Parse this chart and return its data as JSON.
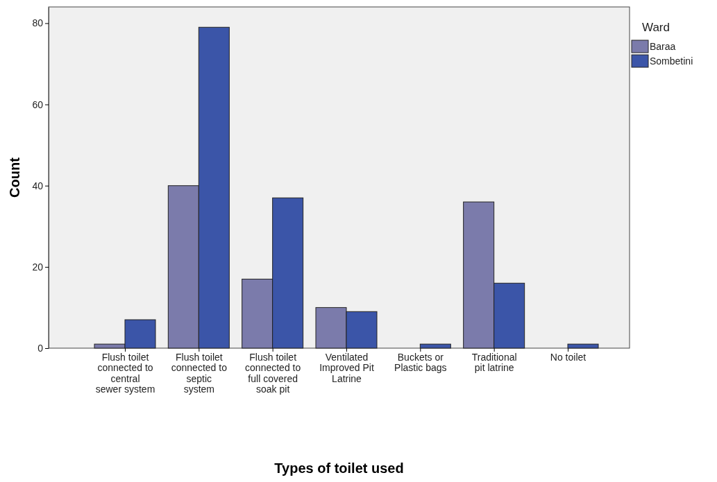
{
  "chart_data": {
    "type": "bar",
    "xlabel": "Types of toilet used",
    "ylabel": "Count",
    "legend_title": "Ward",
    "legend": "top right",
    "grid": false,
    "categories": [
      "Flush toilet connected to central sewer system",
      "Flush toilet connected to septic system",
      "Flush toilet connected to full covered soak pit",
      "Ventilated Improved Pit Latrine",
      "Buckets or Plastic bags",
      "Traditional pit latrine",
      "No toilet"
    ],
    "series": [
      {
        "name": "Baraa",
        "color": "#7b7bab",
        "values": [
          1,
          40,
          17,
          10,
          null,
          36,
          null
        ]
      },
      {
        "name": "Sombetini",
        "color": "#3b55a8",
        "values": [
          7,
          79,
          37,
          9,
          1,
          16,
          1
        ]
      }
    ],
    "ylim": [
      0,
      84
    ],
    "yticks": [
      0,
      20,
      40,
      60,
      80
    ]
  }
}
